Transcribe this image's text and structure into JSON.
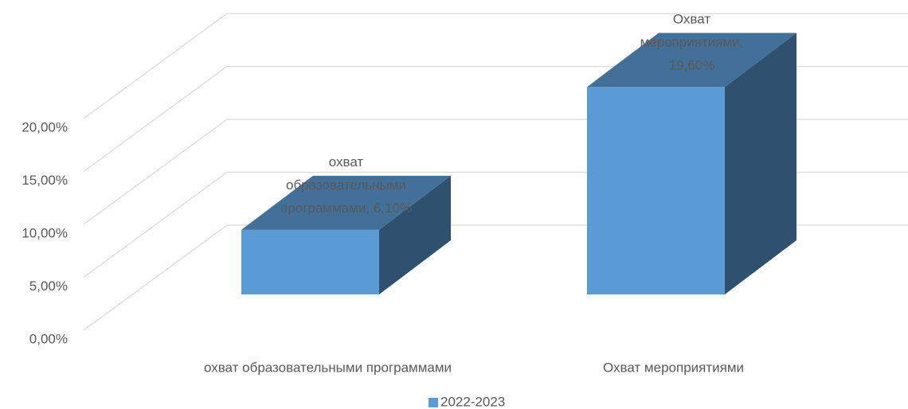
{
  "chart_data": {
    "type": "bar3d",
    "categories": [
      "охват образовательными программами",
      "Охват мероприятиями"
    ],
    "series": [
      {
        "name": "2022-2023",
        "color": "#5b9bd5",
        "values": [
          6.1,
          19.6
        ],
        "value_labels": [
          "охват образовательными программами, 6,10%",
          "Охват мероприятиями, 19,60%"
        ]
      }
    ],
    "ylim": [
      0,
      20
    ],
    "yticks": [
      {
        "value": 0,
        "label": "0,00%"
      },
      {
        "value": 5,
        "label": "5,00%"
      },
      {
        "value": 10,
        "label": "10,00%"
      },
      {
        "value": 15,
        "label": "15,00%"
      },
      {
        "value": 20,
        "label": "20,00%"
      }
    ],
    "grid": true,
    "legend": "bottom"
  }
}
